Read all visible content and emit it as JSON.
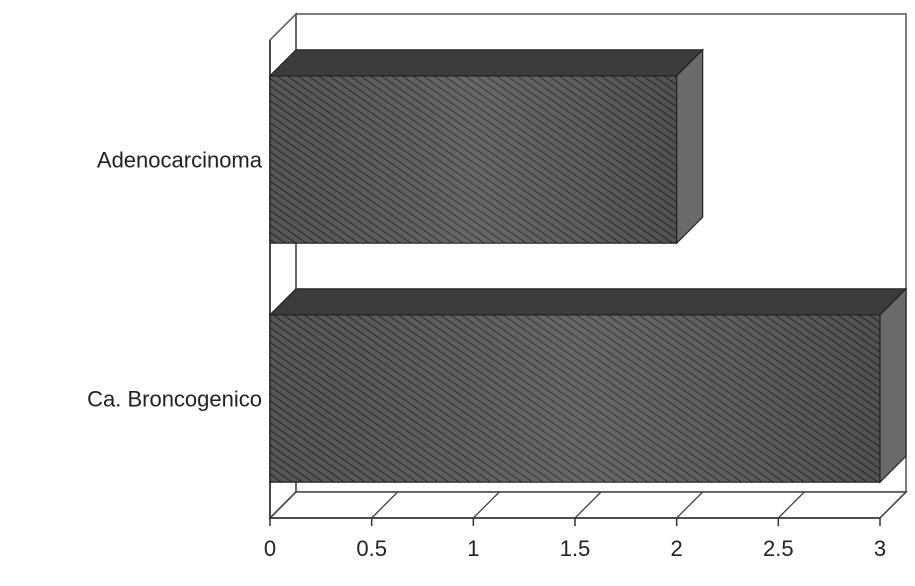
{
  "chart_data": {
    "type": "bar",
    "orientation": "horizontal",
    "style": "3d",
    "categories": [
      "Adenocarcinoma",
      "Ca. Broncogenico"
    ],
    "values": [
      2,
      3
    ],
    "title": "",
    "xlabel": "",
    "ylabel": "",
    "xlim": [
      0,
      3
    ],
    "x_ticks": [
      "0",
      "0.5",
      "1",
      "1.5",
      "2",
      "2.5",
      "3"
    ],
    "grid": false,
    "legend": "none",
    "bar_color": "#4a4a4a"
  }
}
